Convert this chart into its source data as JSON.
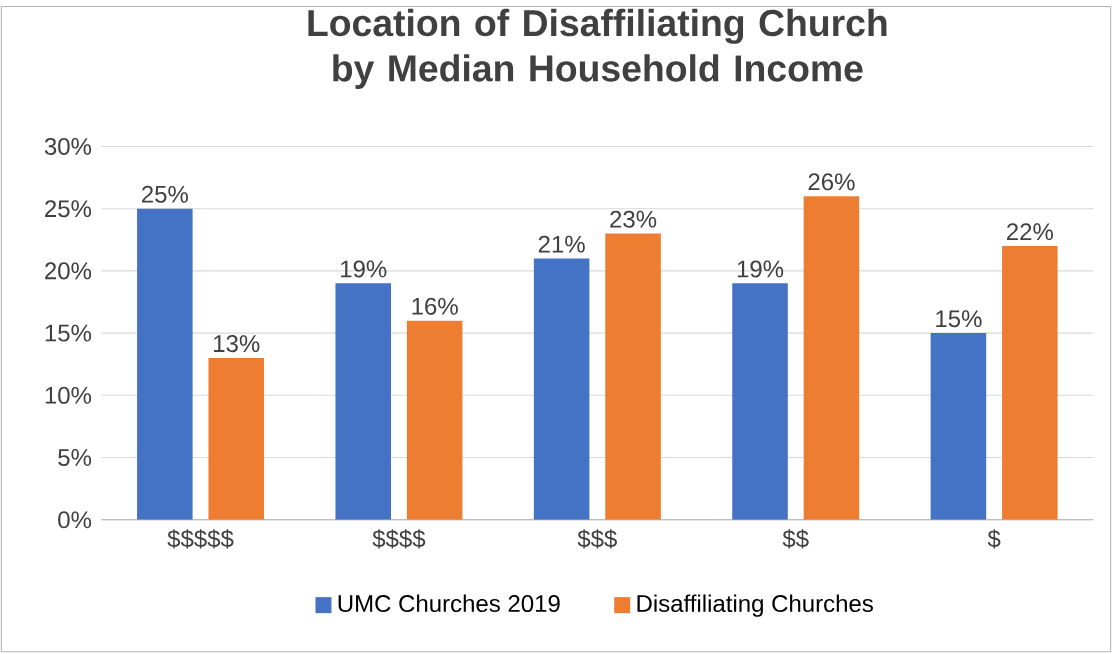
{
  "chart_data": {
    "type": "bar",
    "title": "Location of Disaffiliating Church by Median Household Income",
    "categories": [
      "$$$$$",
      "$$$$",
      "$$$",
      "$$",
      "$"
    ],
    "series": [
      {
        "name": "UMC Churches 2019",
        "color": "#4472c4",
        "values": [
          25,
          19,
          21,
          19,
          15
        ],
        "value_labels": [
          "25%",
          "19%",
          "21%",
          "19%",
          "15%"
        ]
      },
      {
        "name": "Disaffiliating Churches",
        "color": "#ed7d31",
        "values": [
          13,
          16,
          23,
          26,
          22
        ],
        "value_labels": [
          "13%",
          "16%",
          "23%",
          "26%",
          "22%"
        ]
      }
    ],
    "ylim": [
      0,
      30
    ],
    "yticks": [
      {
        "value": 0,
        "label": "0%"
      },
      {
        "value": 5,
        "label": "5%"
      },
      {
        "value": 10,
        "label": "10%"
      },
      {
        "value": 15,
        "label": "15%"
      },
      {
        "value": 20,
        "label": "20%"
      },
      {
        "value": 25,
        "label": "25%"
      },
      {
        "value": 30,
        "label": "30%"
      }
    ],
    "grid": "y",
    "legend": "bottom"
  }
}
